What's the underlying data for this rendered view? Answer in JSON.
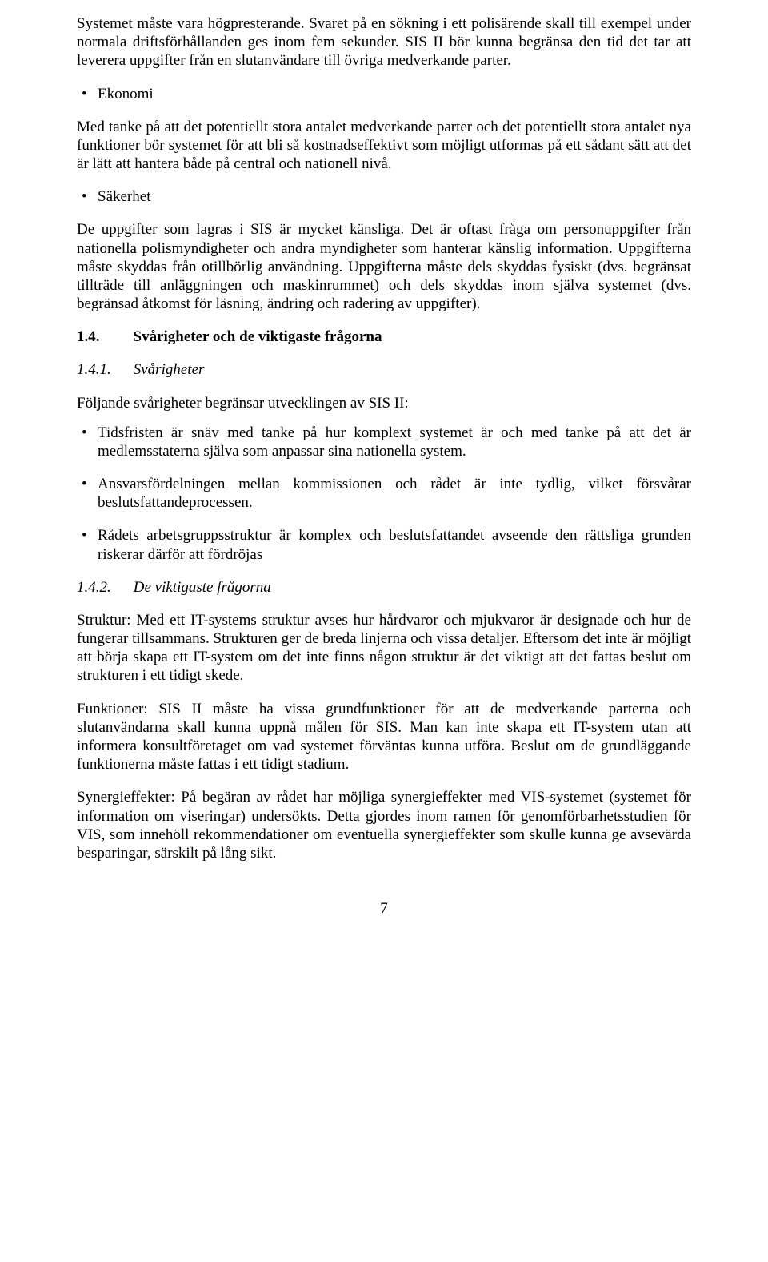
{
  "p1": "Systemet måste vara högpresterande. Svaret på en sökning i ett polisärende skall till exempel under normala driftsförhållanden ges inom fem sekunder. SIS II bör kunna begränsa den tid det tar att leverera uppgifter från en slutanvändare till övriga medverkande parter.",
  "b1_head": "Ekonomi",
  "b1_body": "Med tanke på att det potentiellt stora antalet medverkande parter och det potentiellt stora antalet nya funktioner bör systemet för att bli så kostnadseffektivt som möjligt utformas på ett sådant sätt att det är lätt att hantera både på central och nationell nivå.",
  "b2_head": "Säkerhet",
  "b2_body": "De uppgifter som lagras i SIS är mycket känsliga. Det är oftast fråga om personuppgifter från nationella polismyndigheter och andra myndigheter som hanterar känslig information. Uppgifterna måste skyddas från otillbörlig användning. Uppgifterna måste dels skyddas fysiskt (dvs. begränsat tillträde till anläggningen och maskinrummet) och dels skyddas inom själva systemet (dvs. begränsad åtkomst för läsning, ändring och radering av uppgifter).",
  "sec14_num": "1.4.",
  "sec14_title": "Svårigheter och de viktigaste frågorna",
  "sec141_num": "1.4.1.",
  "sec141_title": "Svårigheter",
  "p_intro1": "Följande svårigheter begränsar utvecklingen av SIS II:",
  "li1": "Tidsfristen är snäv med tanke på hur komplext systemet är och med tanke på att det är medlemsstaterna själva som anpassar sina nationella system.",
  "li2": "Ansvarsfördelningen mellan kommissionen och rådet är inte tydlig, vilket försvårar beslutsfattandeprocessen.",
  "li3": "Rådets arbetsgruppsstruktur är komplex och beslutsfattandet avseende den rättsliga grunden riskerar därför att fördröjas",
  "sec142_num": "1.4.2.",
  "sec142_title": "De viktigaste frågorna",
  "p_struktur": "Struktur: Med ett IT-systems struktur avses hur hårdvaror och mjukvaror är designade och hur de fungerar tillsammans. Strukturen ger de breda linjerna och vissa detaljer. Eftersom det inte är möjligt att börja skapa ett IT-system om det inte finns någon struktur är det viktigt att det fattas beslut om strukturen i ett tidigt skede.",
  "p_funktioner": "Funktioner: SIS II måste ha vissa grundfunktioner för att de medverkande parterna och slutanvändarna skall kunna uppnå målen för SIS. Man kan inte skapa ett IT-system utan att informera konsultföretaget om vad systemet förväntas kunna utföra. Beslut om de grundläggande funktionerna måste fattas i ett tidigt stadium.",
  "p_synergi": "Synergieffekter: På begäran av rådet har möjliga synergieffekter med VIS-systemet (systemet för information om viseringar) undersökts. Detta gjordes inom ramen för genomförbarhetsstudien för VIS, som innehöll rekommendationer om eventuella synergieffekter som skulle kunna ge avsevärda besparingar, särskilt på lång sikt.",
  "pagenum": "7"
}
